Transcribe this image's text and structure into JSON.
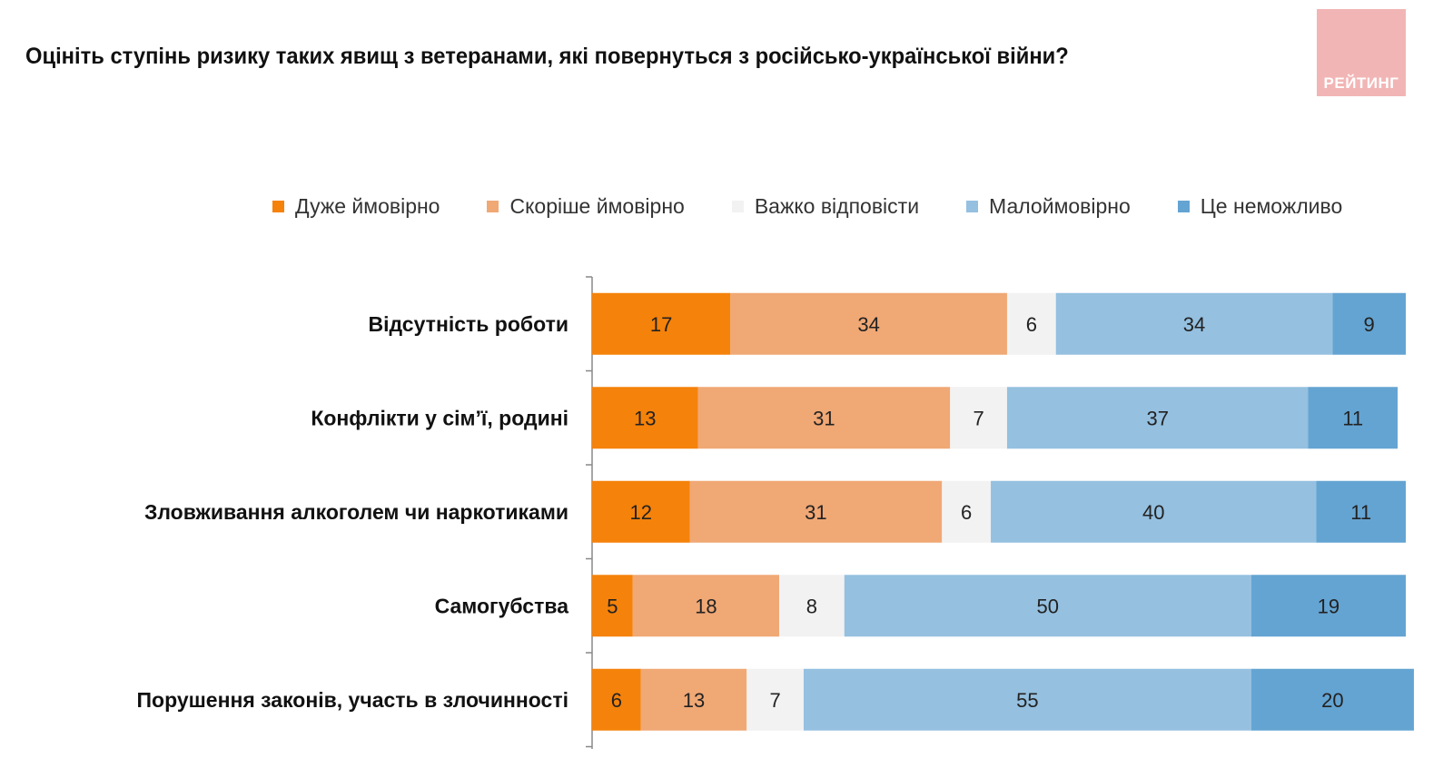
{
  "title": "Оцініть ступінь ризику таких явищ з ветеранами, які повернуться з російсько-української війни?",
  "logo_text": "РЕЙТИНГ",
  "chart_data": {
    "type": "bar",
    "orientation": "horizontal",
    "stacked": true,
    "title": "Оцініть ступінь ризику таких явищ з ветеранами, які повернуться з російсько-української війни?",
    "legend_position": "top",
    "grid": false,
    "categories": [
      "Відсутність роботи",
      "Конфлікти у сім’ї, родині",
      "Зловживання алкоголем чи наркотиками",
      "Самогубства",
      "Порушення законів, участь в злочинності"
    ],
    "series": [
      {
        "name": "Дуже ймовірно",
        "color": "#F5820A",
        "values": [
          17,
          13,
          12,
          5,
          6
        ]
      },
      {
        "name": "Скоріше ймовірно",
        "color": "#F0A875",
        "values": [
          34,
          31,
          31,
          18,
          13
        ]
      },
      {
        "name": "Важко відповісти",
        "color": "#F2F2F2",
        "values": [
          6,
          7,
          6,
          8,
          7
        ]
      },
      {
        "name": "Малоймовірно",
        "color": "#95C0E0",
        "values": [
          34,
          37,
          40,
          50,
          55
        ]
      },
      {
        "name": "Це неможливо",
        "color": "#64A4D2",
        "values": [
          9,
          11,
          11,
          19,
          20
        ]
      }
    ],
    "xlim": [
      0,
      100
    ]
  }
}
